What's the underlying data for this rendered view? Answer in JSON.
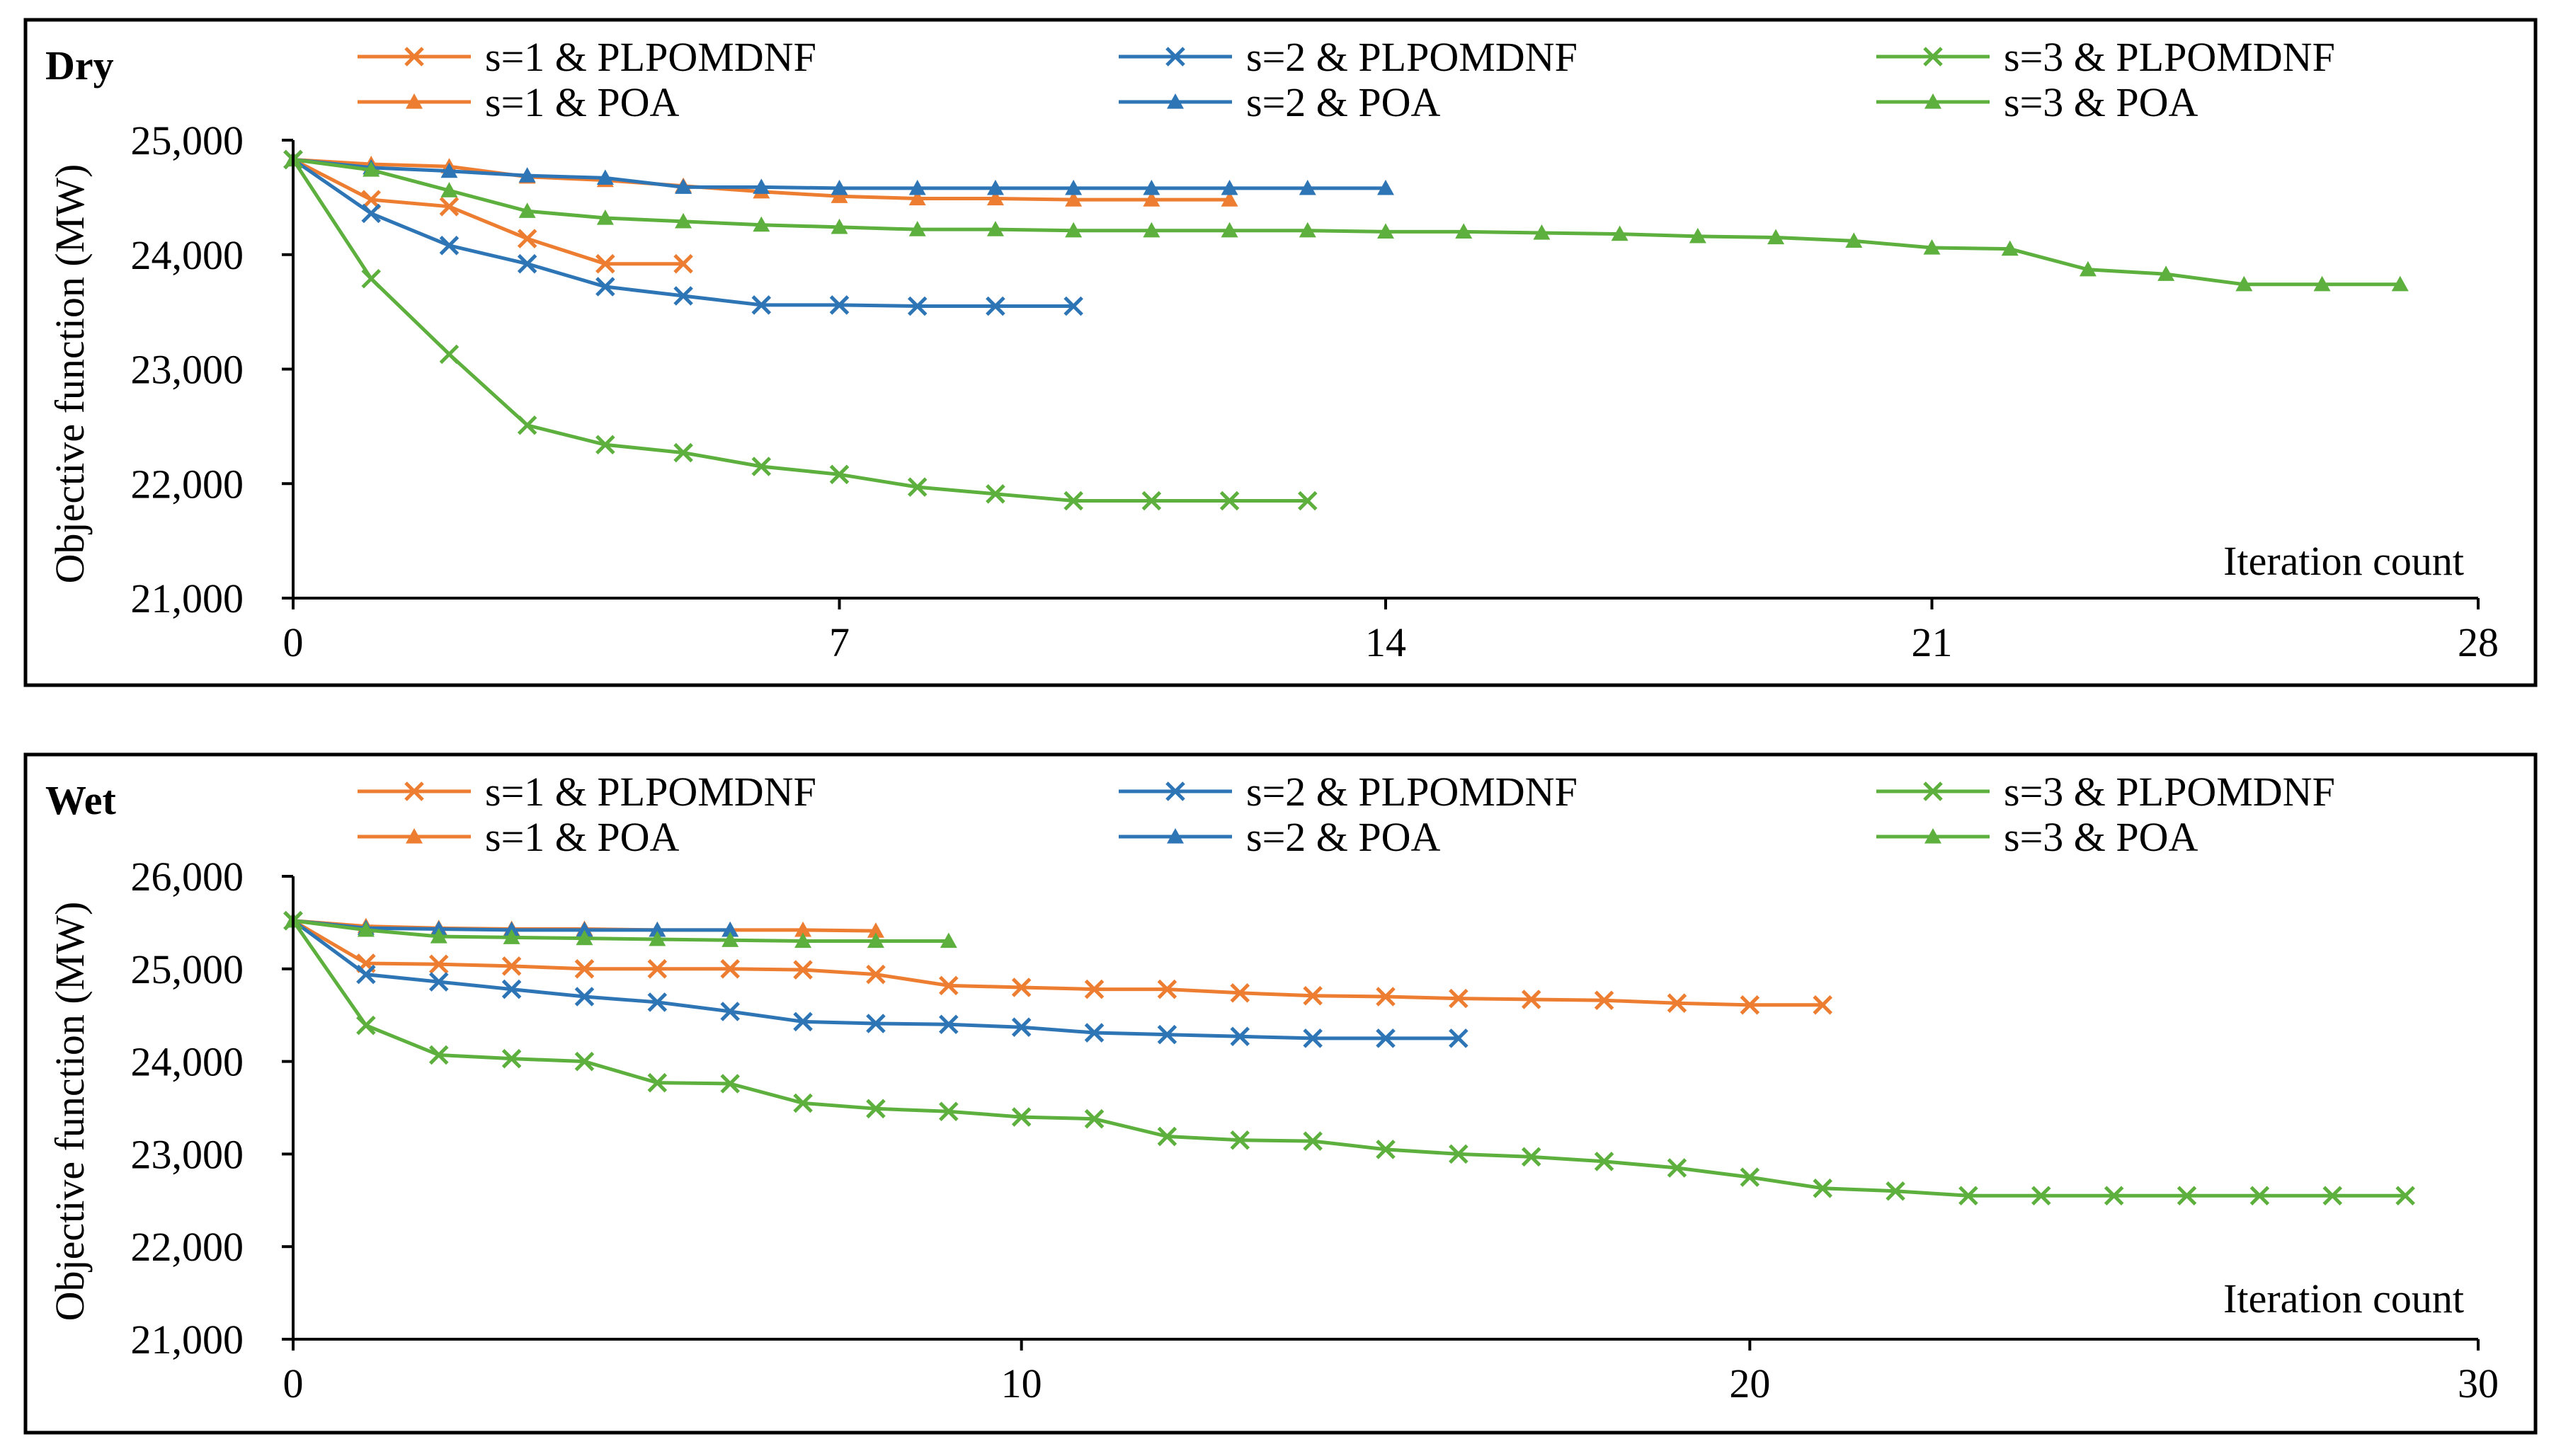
{
  "chart_data": [
    {
      "type": "line",
      "title": "Dry",
      "xlabel": "Iteration count",
      "ylabel": "Objective function (MW)",
      "xlim": [
        0,
        28
      ],
      "ylim": [
        21000,
        25000
      ],
      "xticks": [
        0,
        7,
        14,
        21,
        28
      ],
      "xtick_labels": [
        "0",
        "7",
        "14",
        "21",
        "28"
      ],
      "yticks": [
        21000,
        22000,
        23000,
        24000,
        25000
      ],
      "ytick_labels": [
        "21,000",
        "22,000",
        "23,000",
        "24,000",
        "25,000"
      ],
      "legend_position": "top",
      "series": [
        {
          "name": "s=1 & PLPOMDNF",
          "color": "#ED7D31",
          "marker": "x",
          "x": [
            0,
            1,
            2,
            3,
            4,
            5
          ],
          "y": [
            24830,
            24480,
            24420,
            24140,
            23920,
            23920
          ]
        },
        {
          "name": "s=2 & PLPOMDNF",
          "color": "#2E75B6",
          "marker": "x",
          "x": [
            0,
            1,
            2,
            3,
            4,
            5,
            6,
            7,
            8,
            9,
            10
          ],
          "y": [
            24830,
            24360,
            24080,
            23920,
            23720,
            23640,
            23560,
            23560,
            23550,
            23550,
            23550
          ]
        },
        {
          "name": "s=3 & PLPOMDNF",
          "color": "#5DB03D",
          "marker": "x",
          "x": [
            0,
            1,
            2,
            3,
            4,
            5,
            6,
            7,
            8,
            9,
            10,
            11,
            12,
            13
          ],
          "y": [
            24830,
            23790,
            23130,
            22510,
            22340,
            22270,
            22150,
            22080,
            21970,
            21910,
            21850,
            21850,
            21850,
            21850
          ]
        },
        {
          "name": "s=1 & POA",
          "color": "#ED7D31",
          "marker": "triangle",
          "x": [
            0,
            1,
            2,
            3,
            4,
            5,
            6,
            7,
            8,
            9,
            10,
            11,
            12
          ],
          "y": [
            24830,
            24790,
            24770,
            24680,
            24650,
            24600,
            24550,
            24510,
            24490,
            24490,
            24480,
            24480,
            24480
          ]
        },
        {
          "name": "s=2 & POA",
          "color": "#2E75B6",
          "marker": "triangle",
          "x": [
            0,
            1,
            2,
            3,
            4,
            5,
            6,
            7,
            8,
            9,
            10,
            11,
            12,
            13,
            14
          ],
          "y": [
            24830,
            24760,
            24730,
            24690,
            24670,
            24590,
            24590,
            24580,
            24580,
            24580,
            24580,
            24580,
            24580,
            24580,
            24580
          ]
        },
        {
          "name": "s=3 & POA",
          "color": "#5DB03D",
          "marker": "triangle",
          "x": [
            0,
            1,
            2,
            3,
            4,
            5,
            6,
            7,
            8,
            9,
            10,
            11,
            12,
            13,
            14,
            15,
            16,
            17,
            18,
            19,
            20,
            21,
            22,
            23,
            24,
            25,
            26,
            27
          ],
          "y": [
            24830,
            24740,
            24560,
            24380,
            24320,
            24290,
            24260,
            24240,
            24220,
            24220,
            24210,
            24210,
            24210,
            24210,
            24200,
            24200,
            24190,
            24180,
            24160,
            24150,
            24120,
            24060,
            24050,
            23870,
            23830,
            23740,
            23740,
            23740
          ]
        }
      ]
    },
    {
      "type": "line",
      "title": "Wet",
      "xlabel": "Iteration count",
      "ylabel": "Objective function (MW)",
      "xlim": [
        0,
        30
      ],
      "ylim": [
        21000,
        26000
      ],
      "xticks": [
        0,
        10,
        20,
        30
      ],
      "xtick_labels": [
        "0",
        "10",
        "20",
        "30"
      ],
      "yticks": [
        21000,
        22000,
        23000,
        24000,
        25000,
        26000
      ],
      "ytick_labels": [
        "21,000",
        "22,000",
        "23,000",
        "24,000",
        "25,000",
        "26,000"
      ],
      "legend_position": "top",
      "series": [
        {
          "name": "s=1 & PLPOMDNF",
          "color": "#ED7D31",
          "marker": "x",
          "x": [
            0,
            1,
            2,
            3,
            4,
            5,
            6,
            7,
            8,
            9,
            10,
            11,
            12,
            13,
            14,
            15,
            16,
            17,
            18,
            19,
            20,
            21
          ],
          "y": [
            25520,
            25060,
            25050,
            25030,
            25000,
            25000,
            25000,
            24990,
            24940,
            24820,
            24800,
            24780,
            24780,
            24740,
            24710,
            24700,
            24680,
            24670,
            24660,
            24630,
            24610,
            24610
          ]
        },
        {
          "name": "s=2 & PLPOMDNF",
          "color": "#2E75B6",
          "marker": "x",
          "x": [
            0,
            1,
            2,
            3,
            4,
            5,
            6,
            7,
            8,
            9,
            10,
            11,
            12,
            13,
            14,
            15,
            16
          ],
          "y": [
            25520,
            24940,
            24860,
            24780,
            24700,
            24640,
            24540,
            24430,
            24410,
            24400,
            24370,
            24310,
            24290,
            24270,
            24250,
            24250,
            24250
          ]
        },
        {
          "name": "s=3 & PLPOMDNF",
          "color": "#5DB03D",
          "marker": "x",
          "x": [
            0,
            1,
            2,
            3,
            4,
            5,
            6,
            7,
            8,
            9,
            10,
            11,
            12,
            13,
            14,
            15,
            16,
            17,
            18,
            19,
            20,
            21,
            22,
            23,
            24,
            25,
            26,
            27,
            28,
            29
          ],
          "y": [
            25520,
            24390,
            24070,
            24030,
            24000,
            23770,
            23760,
            23550,
            23490,
            23460,
            23400,
            23380,
            23190,
            23150,
            23140,
            23050,
            23000,
            22970,
            22920,
            22850,
            22750,
            22630,
            22600,
            22550,
            22550,
            22550,
            22550,
            22550,
            22550,
            22550
          ]
        },
        {
          "name": "s=1 & POA",
          "color": "#ED7D31",
          "marker": "triangle",
          "x": [
            0,
            1,
            2,
            3,
            4,
            5,
            6,
            7,
            8
          ],
          "y": [
            25520,
            25460,
            25440,
            25430,
            25430,
            25420,
            25420,
            25420,
            25410
          ]
        },
        {
          "name": "s=2 & POA",
          "color": "#2E75B6",
          "marker": "triangle",
          "x": [
            0,
            1,
            2,
            3,
            4,
            5,
            6
          ],
          "y": [
            25520,
            25440,
            25430,
            25420,
            25420,
            25420,
            25420
          ]
        },
        {
          "name": "s=3 & POA",
          "color": "#5DB03D",
          "marker": "triangle",
          "x": [
            0,
            1,
            2,
            3,
            4,
            5,
            6,
            7,
            8,
            9
          ],
          "y": [
            25520,
            25420,
            25350,
            25340,
            25330,
            25320,
            25310,
            25300,
            25300,
            25300
          ]
        }
      ]
    }
  ]
}
